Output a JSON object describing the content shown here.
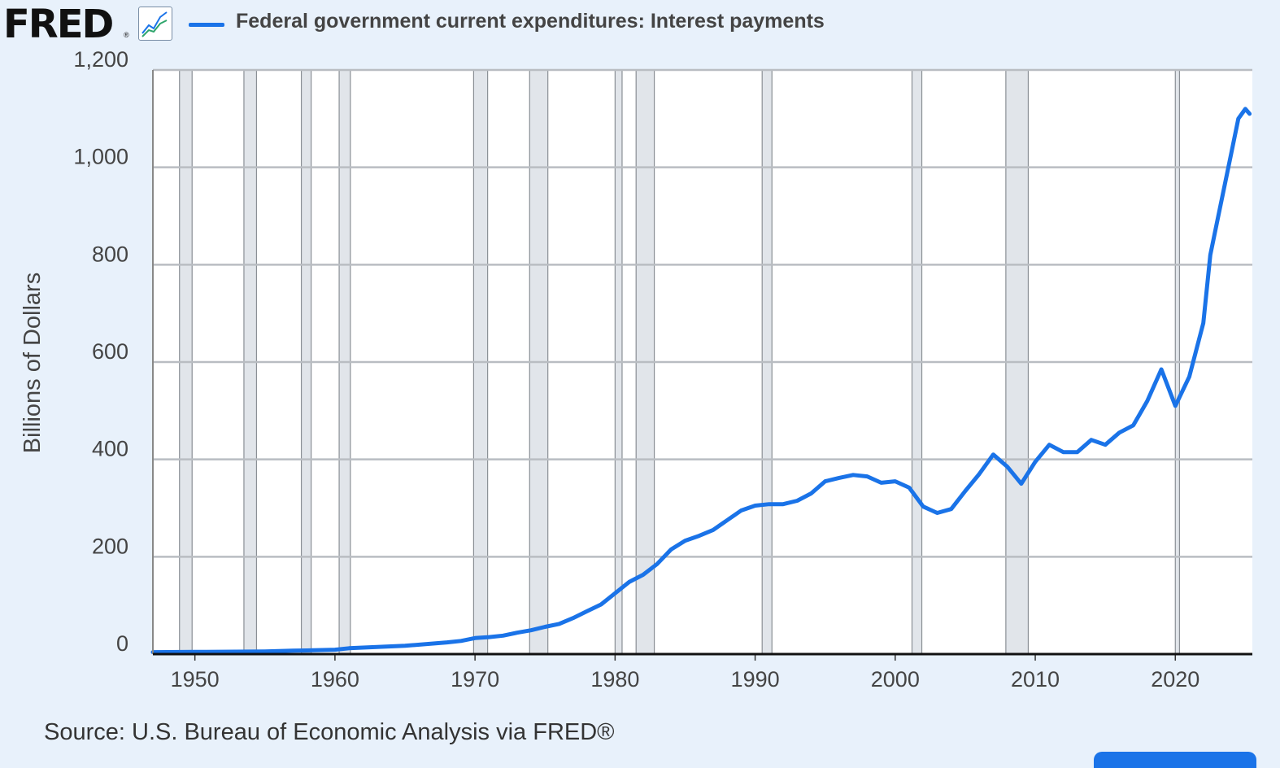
{
  "header": {
    "logo_text": "FRED",
    "logo_mark": "®",
    "graph_icon": "line-chart-icon"
  },
  "legend": {
    "label": "Federal government current expenditures: Interest payments",
    "color": "#1a73e8"
  },
  "source": "Source: U.S. Bureau of Economic Analysis via FRED®",
  "chart_data": {
    "type": "line",
    "title": "Federal government current expenditures: Interest payments",
    "ylabel": "Billions of Dollars",
    "xlabel": "",
    "xlim": [
      1947,
      2025.5
    ],
    "ylim": [
      0,
      1200
    ],
    "yticks": [
      0,
      200,
      400,
      600,
      800,
      1000,
      1200
    ],
    "ytick_labels": [
      "0",
      "200",
      "400",
      "600",
      "800",
      "1,000",
      "1,200"
    ],
    "xticks": [
      1950,
      1960,
      1970,
      1980,
      1990,
      2000,
      2010,
      2020
    ],
    "xtick_labels": [
      "1950",
      "1960",
      "1970",
      "1980",
      "1990",
      "2000",
      "2010",
      "2020"
    ],
    "grid": true,
    "recessions": [
      [
        1948.9,
        1949.8
      ],
      [
        1953.5,
        1954.4
      ],
      [
        1957.6,
        1958.3
      ],
      [
        1960.3,
        1961.1
      ],
      [
        1969.9,
        1970.9
      ],
      [
        1973.9,
        1975.2
      ],
      [
        1980.0,
        1980.5
      ],
      [
        1981.5,
        1982.8
      ],
      [
        1990.5,
        1991.2
      ],
      [
        2001.2,
        2001.9
      ],
      [
        2007.9,
        2009.5
      ],
      [
        2020.0,
        2020.3
      ]
    ],
    "series": [
      {
        "name": "Federal government current expenditures: Interest payments",
        "color": "#1a73e8",
        "x": [
          1947,
          1950,
          1955,
          1957,
          1958,
          1960,
          1961,
          1965,
          1968,
          1969,
          1970,
          1971,
          1972,
          1973,
          1974,
          1975,
          1976,
          1977,
          1978,
          1979,
          1980,
          1981,
          1982,
          1983,
          1984,
          1985,
          1986,
          1987,
          1988,
          1989,
          1990,
          1991,
          1992,
          1993,
          1994,
          1995,
          1996,
          1997,
          1998,
          1999,
          2000,
          2001,
          2002,
          2003,
          2004,
          2005,
          2006,
          2007,
          2008,
          2009,
          2010,
          2011,
          2012,
          2013,
          2014,
          2015,
          2016,
          2017,
          2018,
          2019,
          2020,
          2021,
          2022,
          2022.5,
          2023,
          2024,
          2024.5,
          2025,
          2025.3
        ],
        "values": [
          4,
          4.5,
          5.5,
          7,
          7.5,
          9,
          12,
          17,
          24,
          27,
          33,
          35,
          38,
          44,
          49,
          56,
          62,
          74,
          88,
          102,
          125,
          148,
          163,
          185,
          215,
          233,
          243,
          255,
          275,
          295,
          305,
          308,
          308,
          315,
          330,
          355,
          362,
          368,
          365,
          352,
          355,
          342,
          303,
          290,
          298,
          335,
          370,
          410,
          385,
          350,
          395,
          430,
          415,
          415,
          440,
          430,
          455,
          470,
          520,
          585,
          510,
          570,
          680,
          820,
          890,
          1030,
          1100,
          1120,
          1110
        ]
      }
    ]
  }
}
